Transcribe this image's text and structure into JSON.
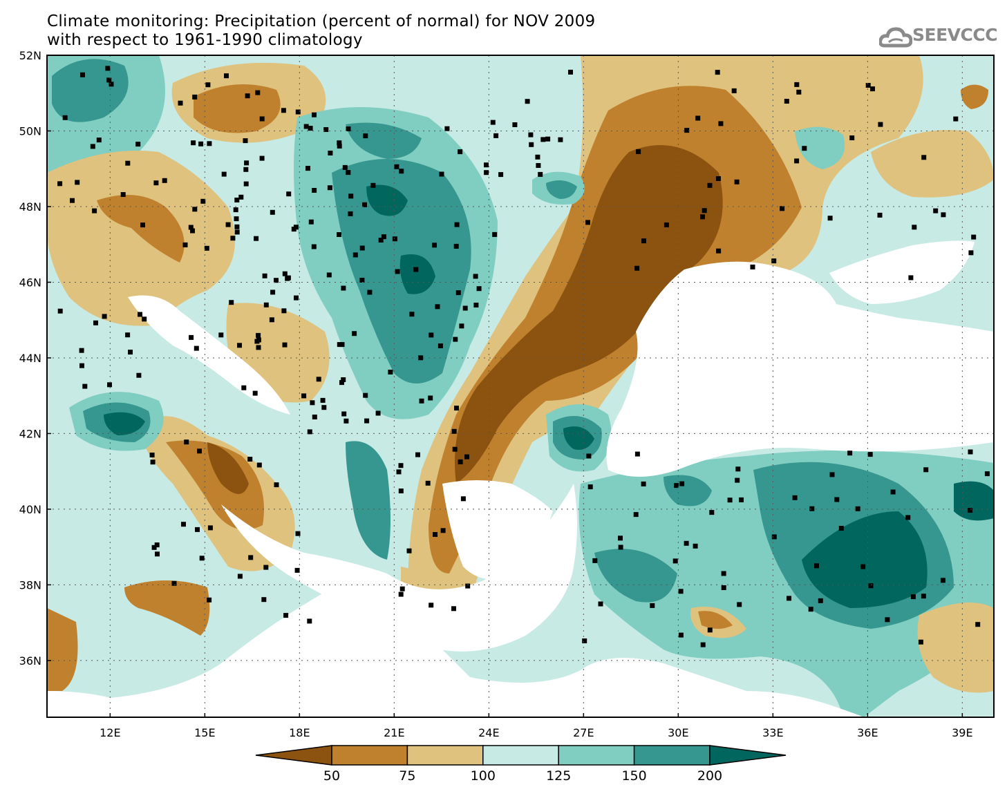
{
  "title": {
    "line1": "Climate monitoring: Precipitation (percent of normal) for NOV 2009",
    "line2": "with respect to 1961-1990 climatology"
  },
  "logo": {
    "text": "SEEVCCC",
    "icon": "cloud-icon"
  },
  "map": {
    "lon_range": [
      10,
      40
    ],
    "lat_range": [
      34.5,
      52
    ],
    "lon_ticks": [
      "12E",
      "15E",
      "18E",
      "21E",
      "24E",
      "27E",
      "30E",
      "33E",
      "36E",
      "39E"
    ],
    "lat_ticks": [
      "52N",
      "50N",
      "48N",
      "46N",
      "44N",
      "42N",
      "40N",
      "38N",
      "36N"
    ],
    "grid": "dotted"
  },
  "colorbar": {
    "labels": [
      "50",
      "75",
      "100",
      "125",
      "150",
      "200"
    ],
    "colors": [
      "#8c5210",
      "#bf812d",
      "#dfc27d",
      "#c7eae5",
      "#80cdc1",
      "#35978f",
      "#01665e"
    ]
  }
}
